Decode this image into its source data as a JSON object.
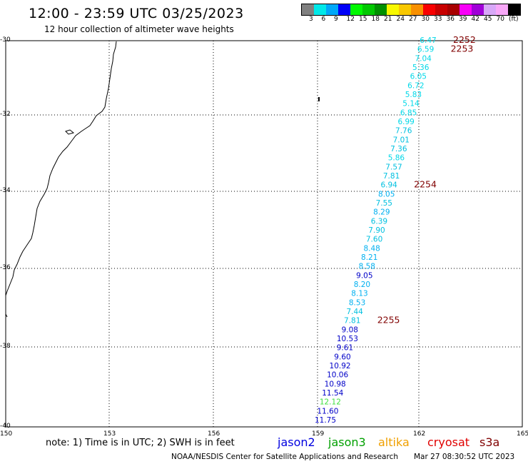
{
  "header": {
    "title": "12:00 - 23:59 UTC 03/25/2023",
    "subtitle": "12 hour collection of altimeter wave heights"
  },
  "legend": {
    "colors": [
      "#808080",
      "#00e8e8",
      "#00a8f8",
      "#0000f8",
      "#00f800",
      "#00c800",
      "#009000",
      "#f8f800",
      "#f8c800",
      "#f89000",
      "#f80000",
      "#c80000",
      "#a80000",
      "#f800f8",
      "#a000d8",
      "#d8a8f8",
      "#f8a8f8",
      "#000000"
    ],
    "labels": [
      "3",
      "6",
      "9",
      "12",
      "15",
      "18",
      "21",
      "24",
      "27",
      "30",
      "33",
      "36",
      "39",
      "42",
      "45",
      "70",
      "(ft)"
    ]
  },
  "axes": {
    "lat_labels": [
      "-30",
      "-32",
      "-34",
      "-36",
      "-38",
      "-40"
    ],
    "lon_labels": [
      "150",
      "153",
      "156",
      "159",
      "162",
      "165"
    ]
  },
  "map_data": {
    "tracks": [
      {
        "label": "2252",
        "color": "#00d8e8"
      },
      {
        "label": "2253",
        "color": "#00d8e8"
      },
      {
        "label": "2254",
        "color": "#00c0e0"
      },
      {
        "label": "2255",
        "color": "#0000c8"
      }
    ],
    "measurements": [
      {
        "value": "6.47",
        "color": "#00d8e8"
      },
      {
        "value": "6.59",
        "color": "#00d8e8"
      },
      {
        "value": "7.04",
        "color": "#00d8e8"
      },
      {
        "value": "5.36",
        "color": "#00d8e8"
      },
      {
        "value": "6.05",
        "color": "#00d8e8"
      },
      {
        "value": "6.72",
        "color": "#00d8e8"
      },
      {
        "value": "5.83",
        "color": "#00d8e8"
      },
      {
        "value": "5.14",
        "color": "#00d8e8"
      },
      {
        "value": "6.85",
        "color": "#00d8e8"
      },
      {
        "value": "6.99",
        "color": "#00d8e8"
      },
      {
        "value": "7.76",
        "color": "#00c0e0"
      },
      {
        "value": "7.01",
        "color": "#00c0e0"
      },
      {
        "value": "7.36",
        "color": "#00c0e0"
      },
      {
        "value": "5.86",
        "color": "#00d8e8"
      },
      {
        "value": "7.57",
        "color": "#00c0e0"
      },
      {
        "value": "7.81",
        "color": "#00c0e0"
      },
      {
        "value": "6.94",
        "color": "#00c0e0"
      },
      {
        "value": "8.05",
        "color": "#00b0f0"
      },
      {
        "value": "7.55",
        "color": "#00c0e0"
      },
      {
        "value": "8.29",
        "color": "#00b0f0"
      },
      {
        "value": "6.39",
        "color": "#00c0e0"
      },
      {
        "value": "7.90",
        "color": "#00c0e0"
      },
      {
        "value": "7.60",
        "color": "#00c0e0"
      },
      {
        "value": "8.48",
        "color": "#00b0f0"
      },
      {
        "value": "8.21",
        "color": "#00b0f0"
      },
      {
        "value": "8.58",
        "color": "#00b0f0"
      },
      {
        "value": "9.05",
        "color": "#0000c8"
      },
      {
        "value": "8.20",
        "color": "#00b0f0"
      },
      {
        "value": "8.13",
        "color": "#00b0f0"
      },
      {
        "value": "8.53",
        "color": "#00b0f0"
      },
      {
        "value": "7.44",
        "color": "#00c0e0"
      },
      {
        "value": "7.81",
        "color": "#00c0e0"
      },
      {
        "value": "9.08",
        "color": "#0000c8"
      },
      {
        "value": "10.53",
        "color": "#0000c8"
      },
      {
        "value": "9.61",
        "color": "#0000c8"
      },
      {
        "value": "9.60",
        "color": "#0000c8"
      },
      {
        "value": "10.92",
        "color": "#0000c8"
      },
      {
        "value": "10.06",
        "color": "#0000c8"
      },
      {
        "value": "10.98",
        "color": "#0000c8"
      },
      {
        "value": "11.54",
        "color": "#0000c8"
      },
      {
        "value": "12.12",
        "color": "#40e040"
      },
      {
        "value": "11.60",
        "color": "#0000c8"
      },
      {
        "value": "11.75",
        "color": "#0000c8"
      }
    ]
  },
  "footer": {
    "note": "note: 1) Time is in UTC; 2) SWH is in feet",
    "satellites": [
      {
        "name": "jason2",
        "color": "#0000e0"
      },
      {
        "name": "jason3",
        "color": "#00a000"
      },
      {
        "name": "altika",
        "color": "#f0a000"
      },
      {
        "name": "cryosat",
        "color": "#e00000"
      },
      {
        "name": "s3a",
        "color": "#800000"
      }
    ],
    "credit": "NOAA/NESDIS Center for Satellite Applications and Research",
    "timestamp": "Mar 27 08:30:52 UTC 2023"
  }
}
